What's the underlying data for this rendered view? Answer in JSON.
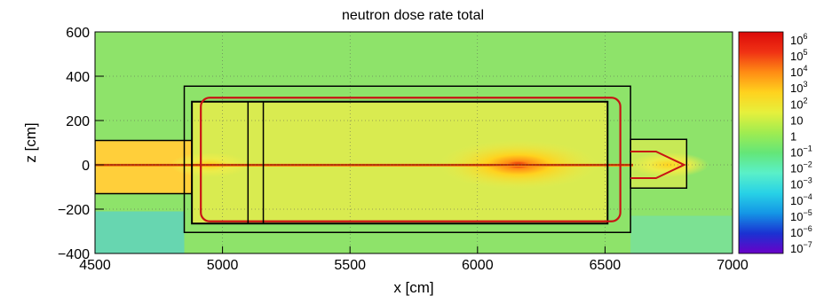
{
  "chart_data": {
    "type": "heatmap",
    "title": "neutron dose rate total",
    "xlabel": "x [cm]",
    "ylabel": "z [cm]",
    "xlim": [
      4500,
      7000
    ],
    "ylim": [
      -400,
      600
    ],
    "x_ticks": [
      {
        "value": 4500,
        "label": "4500"
      },
      {
        "value": 5000,
        "label": "5000"
      },
      {
        "value": 5500,
        "label": "5500"
      },
      {
        "value": 6000,
        "label": "6000"
      },
      {
        "value": 6500,
        "label": "6500"
      },
      {
        "value": 7000,
        "label": "7000"
      }
    ],
    "y_ticks": [
      {
        "value": -400,
        "label": "−400"
      },
      {
        "value": -200,
        "label": "−200"
      },
      {
        "value": 0,
        "label": "0"
      },
      {
        "value": 200,
        "label": "200"
      },
      {
        "value": 400,
        "label": "400"
      },
      {
        "value": 600,
        "label": "600"
      }
    ],
    "grid": true,
    "colorbar": {
      "scale": "log",
      "colormap": [
        "#6a00c8",
        "#1a32d2",
        "#1496e6",
        "#28d2e6",
        "#5af0c8",
        "#64e678",
        "#a0ec50",
        "#e6f03c",
        "#ffd21e",
        "#ff8c14",
        "#f03214",
        "#dc0a0a"
      ],
      "labels": [
        {
          "base": "10",
          "exp": "6"
        },
        {
          "base": "10",
          "exp": "5"
        },
        {
          "base": "10",
          "exp": "4"
        },
        {
          "base": "10",
          "exp": "3"
        },
        {
          "base": "10",
          "exp": "2"
        },
        {
          "base": "10",
          "exp": ""
        },
        {
          "base": "1",
          "exp": ""
        },
        {
          "base": "10",
          "exp": "−1"
        },
        {
          "base": "10",
          "exp": "−2"
        },
        {
          "base": "10",
          "exp": "−3"
        },
        {
          "base": "10",
          "exp": "−4"
        },
        {
          "base": "10",
          "exp": "−5"
        },
        {
          "base": "10",
          "exp": "−6"
        },
        {
          "base": "10",
          "exp": "−7"
        }
      ]
    },
    "colors": {
      "field": "#8ee36a",
      "field_hot": "#ecec4a",
      "duct": "#ffcf3a",
      "contour_red": "#c81414",
      "frame": "#000000"
    },
    "regions": [
      {
        "name": "outer-shield",
        "x": [
          4850,
          6600
        ],
        "z": [
          -305,
          355
        ]
      },
      {
        "name": "inner-chamber",
        "x": [
          4880,
          6510
        ],
        "z": [
          -265,
          285
        ]
      },
      {
        "name": "end-cap",
        "x": [
          6600,
          6820
        ],
        "z": [
          -105,
          115
        ]
      },
      {
        "name": "upstream-pipe",
        "x": [
          4500,
          4880
        ],
        "z": [
          -130,
          110
        ]
      },
      {
        "name": "inner-divider-1",
        "x": [
          5100,
          5100
        ],
        "z": [
          -265,
          285
        ]
      },
      {
        "name": "inner-divider-2",
        "x": [
          5160,
          5160
        ],
        "z": [
          -265,
          285
        ]
      }
    ],
    "hotspots": [
      {
        "x": 6160,
        "z": 0,
        "level": "high"
      },
      {
        "x": 4950,
        "z": 0,
        "level": "medium"
      },
      {
        "x": 6750,
        "z": 0,
        "level": "medium"
      }
    ]
  }
}
